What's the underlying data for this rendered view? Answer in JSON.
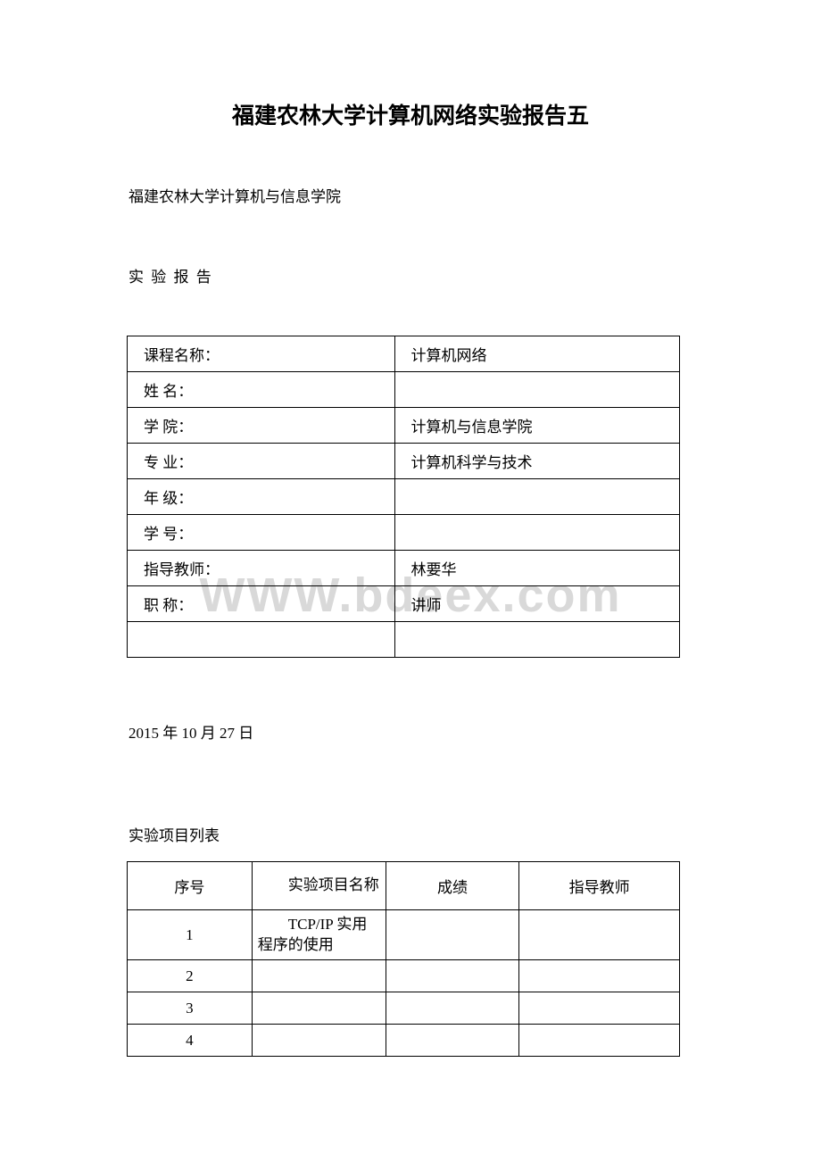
{
  "title": "福建农林大学计算机网络实验报告五",
  "subtitle": "福建农林大学计算机与信息学院",
  "report_label": "实 验 报 告",
  "watermark": "WWW.bdeex.com",
  "info_table": {
    "rows": [
      {
        "label": "课程名称：",
        "value": "计算机网络"
      },
      {
        "label": "姓 名：",
        "value": ""
      },
      {
        "label": "学 院：",
        "value": "计算机与信息学院"
      },
      {
        "label": "专 业：",
        "value": "计算机科学与技术"
      },
      {
        "label": "年 级：",
        "value": ""
      },
      {
        "label": "学 号：",
        "value": ""
      },
      {
        "label": "指导教师：",
        "value": "林要华"
      },
      {
        "label": "职 称：",
        "value": "讲师"
      },
      {
        "label": "",
        "value": ""
      }
    ]
  },
  "date_line": "2015 年 10 月 27 日",
  "project_list_label": "实验项目列表",
  "project_table": {
    "headers": {
      "seq": "序号",
      "name": "实验项目名称",
      "score": "成绩",
      "teacher": "指导教师"
    },
    "rows": [
      {
        "seq": "1",
        "name": "TCP/IP 实用程序的使用",
        "score": "",
        "teacher": ""
      },
      {
        "seq": "2",
        "name": "",
        "score": "",
        "teacher": ""
      },
      {
        "seq": "3",
        "name": "",
        "score": "",
        "teacher": ""
      },
      {
        "seq": "4",
        "name": "",
        "score": "",
        "teacher": ""
      }
    ]
  },
  "colors": {
    "text": "#000000",
    "background": "#ffffff",
    "border": "#000000",
    "watermark": "#d9d9d9"
  }
}
